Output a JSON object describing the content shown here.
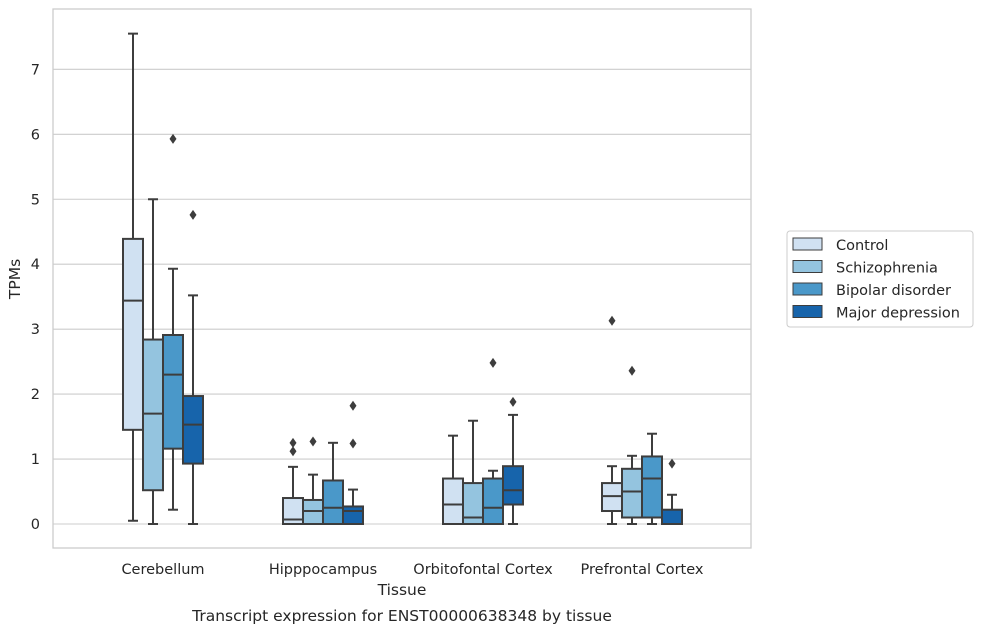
{
  "chart_data": {
    "type": "box",
    "title": "",
    "caption": "Transcript expression for ENST00000638348 by tissue",
    "xlabel": "Tissue",
    "ylabel": "TPMs",
    "ylim": [
      -0.37,
      7.95
    ],
    "yticks": [
      0,
      1,
      2,
      3,
      4,
      5,
      6,
      7
    ],
    "grid": "horizontal",
    "legend_position": "right",
    "categories": [
      "Cerebellum",
      "Hipppocampus",
      "Orbitofontal Cortex",
      "Prefrontal Cortex"
    ],
    "series": [
      {
        "name": "Control",
        "color": "#d0e1f2",
        "boxes": [
          {
            "whislo": 0.05,
            "q1": 1.45,
            "med": 3.44,
            "q3": 4.39,
            "whishi": 7.55,
            "fliers": []
          },
          {
            "whislo": 0.0,
            "q1": 0.0,
            "med": 0.07,
            "q3": 0.4,
            "whishi": 0.88,
            "fliers": [
              1.25,
              1.12
            ]
          },
          {
            "whislo": 0.0,
            "q1": 0.0,
            "med": 0.3,
            "q3": 0.7,
            "whishi": 1.36,
            "fliers": []
          },
          {
            "whislo": 0.0,
            "q1": 0.2,
            "med": 0.43,
            "q3": 0.63,
            "whishi": 0.89,
            "fliers": [
              3.13
            ]
          }
        ]
      },
      {
        "name": "Schizophrenia",
        "color": "#94c4df",
        "boxes": [
          {
            "whislo": 0.0,
            "q1": 0.52,
            "med": 1.7,
            "q3": 2.84,
            "whishi": 5.0,
            "fliers": []
          },
          {
            "whislo": 0.0,
            "q1": 0.0,
            "med": 0.2,
            "q3": 0.37,
            "whishi": 0.76,
            "fliers": [
              1.27
            ]
          },
          {
            "whislo": 0.0,
            "q1": 0.0,
            "med": 0.1,
            "q3": 0.63,
            "whishi": 1.59,
            "fliers": []
          },
          {
            "whislo": 0.0,
            "q1": 0.1,
            "med": 0.5,
            "q3": 0.85,
            "whishi": 1.05,
            "fliers": [
              2.36
            ]
          }
        ]
      },
      {
        "name": "Bipolar disorder",
        "color": "#4a98c9",
        "boxes": [
          {
            "whislo": 0.22,
            "q1": 1.16,
            "med": 2.3,
            "q3": 2.91,
            "whishi": 3.93,
            "fliers": [
              5.93
            ]
          },
          {
            "whislo": 0.0,
            "q1": 0.0,
            "med": 0.25,
            "q3": 0.67,
            "whishi": 1.25,
            "fliers": []
          },
          {
            "whislo": 0.0,
            "q1": 0.0,
            "med": 0.25,
            "q3": 0.7,
            "whishi": 0.82,
            "fliers": [
              2.48
            ]
          },
          {
            "whislo": 0.0,
            "q1": 0.1,
            "med": 0.7,
            "q3": 1.04,
            "whishi": 1.39,
            "fliers": []
          }
        ]
      },
      {
        "name": "Major depression",
        "color": "#1764ab",
        "boxes": [
          {
            "whislo": 0.0,
            "q1": 0.93,
            "med": 1.53,
            "q3": 1.97,
            "whishi": 3.52,
            "fliers": [
              4.76
            ]
          },
          {
            "whislo": 0.0,
            "q1": 0.0,
            "med": 0.2,
            "q3": 0.27,
            "whishi": 0.53,
            "fliers": [
              1.82,
              1.24
            ]
          },
          {
            "whislo": 0.0,
            "q1": 0.3,
            "med": 0.52,
            "q3": 0.89,
            "whishi": 1.68,
            "fliers": [
              1.88
            ]
          },
          {
            "whislo": 0.0,
            "q1": 0.0,
            "med": 0.0,
            "q3": 0.22,
            "whishi": 0.45,
            "fliers": [
              0.93
            ]
          }
        ]
      }
    ]
  }
}
